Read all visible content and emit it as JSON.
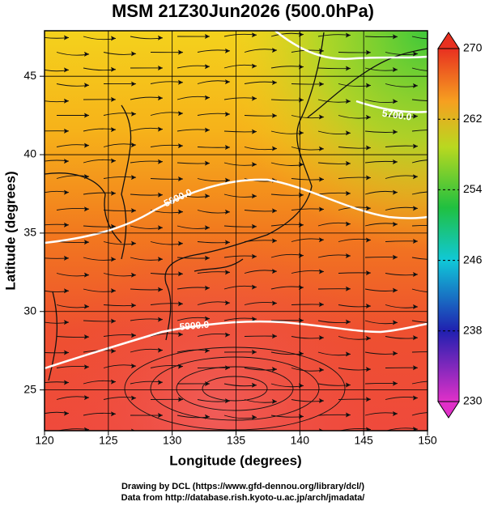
{
  "title": "MSM 21Z30Jun2026 (500.0hPa)",
  "x_label": "Longitude (degrees)",
  "y_label": "Latitude  (degrees)",
  "xlim": [
    120,
    150
  ],
  "ylim": [
    22.4,
    47.9
  ],
  "xticks": [
    120,
    125,
    130,
    135,
    140,
    145,
    150
  ],
  "yticks": [
    25,
    30,
    35,
    40,
    45
  ],
  "colorbar": {
    "lim": [
      230,
      270
    ],
    "ticks": [
      230,
      238,
      246,
      254,
      262,
      270
    ]
  },
  "contours": [
    {
      "value": 5700,
      "label": "5700.0"
    },
    {
      "value": 5800,
      "label": "5800.0"
    },
    {
      "value": 5900,
      "label": "5900.0"
    }
  ],
  "credits": [
    "Drawing by DCL (https://www.gfd-dennou.org/library/dcl/)",
    "Data from http://database.rish.kyoto-u.ac.jp/arch/jmadata/"
  ]
}
